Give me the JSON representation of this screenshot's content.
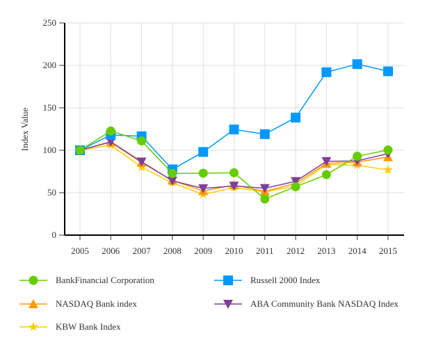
{
  "chart_data": {
    "type": "line",
    "title": "",
    "xlabel": "",
    "ylabel": "Index Value",
    "ylim": [
      0,
      250
    ],
    "yticks": [
      "0",
      "50",
      "100",
      "150",
      "200",
      "250"
    ],
    "categories": [
      "2005",
      "2006",
      "2007",
      "2008",
      "2009",
      "2010",
      "2011",
      "2012",
      "2013",
      "2014",
      "2015"
    ],
    "grid": true,
    "legend_position": "bottom",
    "series": [
      {
        "name": "BankFinancial Corporation",
        "marker": "circle",
        "color": "#66cc00",
        "values": [
          100,
          122.7,
          111,
          72.7,
          73,
          73.5,
          42.6,
          57,
          71.3,
          93,
          100.3
        ]
      },
      {
        "name": "Russell 2000 Index",
        "marker": "square",
        "color": "#0099ff",
        "values": [
          100,
          118,
          116.5,
          77.5,
          98,
          124.5,
          119,
          138.5,
          192,
          201.5,
          193
        ]
      },
      {
        "name": "NASDAQ Bank index",
        "marker": "triangle-up",
        "color": "#ff9900",
        "values": [
          100,
          109.5,
          85.5,
          64.5,
          52,
          59,
          51.6,
          61,
          84.4,
          86,
          92
        ]
      },
      {
        "name": "ABA Community Bank NASDAQ Index",
        "marker": "triangle-down",
        "color": "#7f3f98",
        "values": [
          100,
          110,
          86.5,
          64,
          55,
          58,
          55.2,
          63.4,
          87,
          87.5,
          96
        ]
      },
      {
        "name": "KBW Bank Index",
        "marker": "star",
        "color": "#ffcc00",
        "values": [
          100,
          106,
          80,
          61.7,
          48,
          56,
          50.8,
          58,
          83,
          82.5,
          76.8
        ]
      }
    ]
  }
}
